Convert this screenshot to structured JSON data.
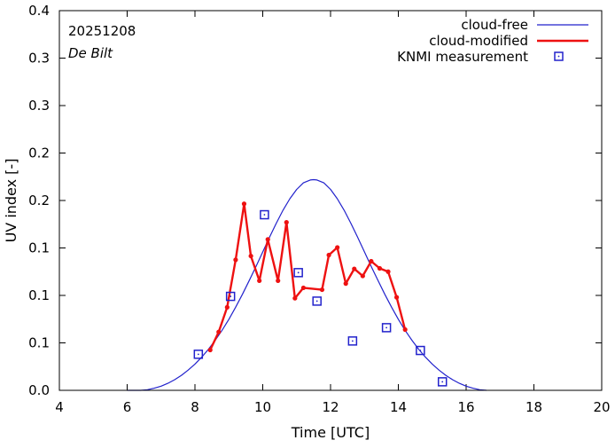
{
  "chart_data": {
    "type": "line",
    "title": "",
    "date_label": "20251208",
    "station_label": "De Bilt",
    "xlabel": "Time  [UTC]",
    "ylabel": "UV index  [-]",
    "xlim": [
      4,
      20
    ],
    "ylim": [
      0,
      0.4
    ],
    "x_ticks": [
      4,
      6,
      8,
      10,
      12,
      14,
      16,
      18,
      20
    ],
    "x_tick_labels": [
      "4",
      "6",
      "8",
      "10",
      "12",
      "14",
      "16",
      "18",
      "20"
    ],
    "y_ticks": [
      0,
      0.05,
      0.1,
      0.15,
      0.2,
      0.25,
      0.3,
      0.35,
      0.4
    ],
    "y_tick_labels": [
      "0.0",
      "0.1",
      "0.1",
      "0.1",
      "0.2",
      "0.2",
      "0.3",
      "0.3",
      "0.4"
    ],
    "legend_position": "top-right",
    "series": [
      {
        "name": "cloud-free",
        "color": "#2222cc",
        "style": "line",
        "x": [
          6.0,
          6.2,
          6.4,
          6.6,
          6.8,
          7.0,
          7.2,
          7.4,
          7.6,
          7.8,
          8.0,
          8.2,
          8.4,
          8.6,
          8.8,
          9.0,
          9.2,
          9.4,
          9.6,
          9.8,
          10.0,
          10.2,
          10.4,
          10.6,
          10.8,
          11.0,
          11.2,
          11.4,
          11.5,
          11.6,
          11.8,
          12.0,
          12.2,
          12.4,
          12.6,
          12.8,
          13.0,
          13.2,
          13.4,
          13.6,
          13.8,
          14.0,
          14.2,
          14.4,
          14.6,
          14.8,
          15.0,
          15.2,
          15.4,
          15.6,
          15.8,
          16.0,
          16.2,
          16.4,
          16.6
        ],
        "values": [
          0.0,
          0.0,
          0.0,
          0.0007,
          0.0022,
          0.0044,
          0.0074,
          0.0112,
          0.0158,
          0.0213,
          0.0277,
          0.035,
          0.0434,
          0.0528,
          0.0633,
          0.0749,
          0.0876,
          0.1012,
          0.1156,
          0.1305,
          0.1458,
          0.1612,
          0.1761,
          0.1898,
          0.2019,
          0.2117,
          0.2186,
          0.2216,
          0.222,
          0.2216,
          0.2186,
          0.2117,
          0.2019,
          0.1898,
          0.1761,
          0.1612,
          0.1458,
          0.1305,
          0.1156,
          0.1012,
          0.0876,
          0.0749,
          0.0633,
          0.0528,
          0.0434,
          0.035,
          0.0277,
          0.0213,
          0.0158,
          0.0112,
          0.0074,
          0.0044,
          0.0022,
          0.0007,
          0.0
        ]
      },
      {
        "name": "cloud-modified",
        "color": "#ee1111",
        "style": "line-points",
        "x": [
          8.45,
          8.7,
          8.95,
          9.2,
          9.45,
          9.65,
          9.9,
          10.15,
          10.45,
          10.7,
          10.95,
          11.2,
          11.75,
          11.95,
          12.2,
          12.45,
          12.7,
          12.95,
          13.2,
          13.45,
          13.7,
          13.95,
          14.2
        ],
        "values": [
          0.0425,
          0.0615,
          0.0875,
          0.1375,
          0.1965,
          0.1415,
          0.1155,
          0.159,
          0.1155,
          0.177,
          0.097,
          0.108,
          0.106,
          0.1425,
          0.1505,
          0.1125,
          0.128,
          0.1205,
          0.136,
          0.1285,
          0.125,
          0.098,
          0.064
        ]
      },
      {
        "name": "KNMI measurement",
        "color": "#2222cc",
        "style": "square-markers",
        "x": [
          8.1,
          9.05,
          10.05,
          11.05,
          11.6,
          12.65,
          13.65,
          14.65,
          15.3
        ],
        "values": [
          0.038,
          0.099,
          0.185,
          0.124,
          0.094,
          0.052,
          0.066,
          0.042,
          0.009
        ]
      }
    ]
  }
}
